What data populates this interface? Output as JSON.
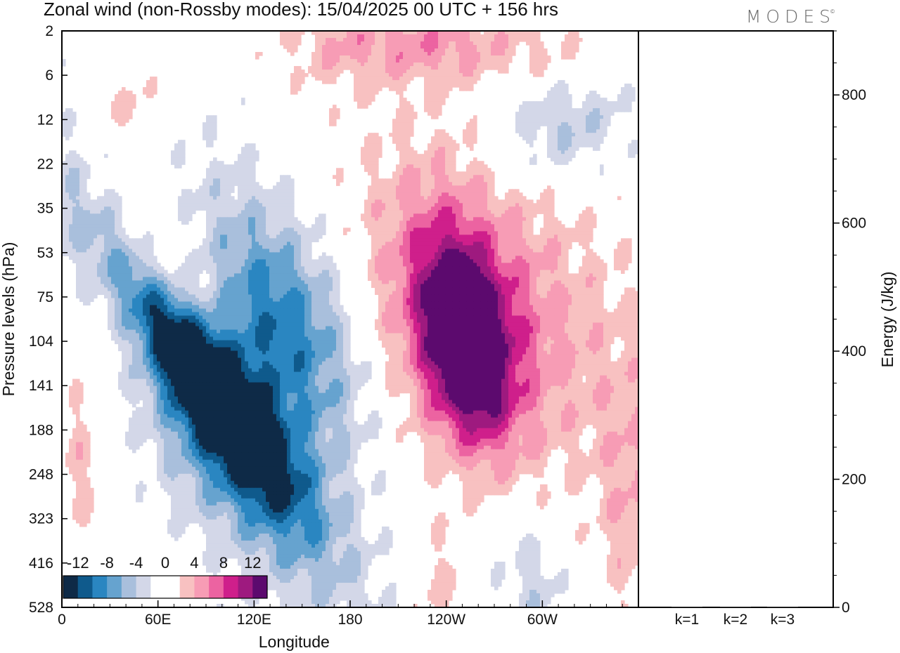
{
  "title": "Zonal wind (non-Rossby modes):  15/04/2025  00 UTC  + 156 hrs",
  "brand": "MODES",
  "chart_data": [
    {
      "type": "heatmap",
      "variable": "Zonal wind (non-Rossby modes)",
      "ylabel": "Pressure levels (hPa)",
      "xlabel": "Longitude",
      "y_ticks": [
        "2",
        "6",
        "12",
        "22",
        "35",
        "53",
        "75",
        "104",
        "141",
        "188",
        "248",
        "323",
        "416",
        "528"
      ],
      "x_ticks": [
        "0",
        "60E",
        "120E",
        "180",
        "120W",
        "60W"
      ],
      "x_range": [
        0,
        360
      ],
      "colorbar": {
        "labels": [
          "-12",
          "-8",
          "-4",
          "0",
          "4",
          "8",
          "12"
        ],
        "levels": [
          -14,
          -12,
          -10,
          -8,
          -6,
          -4,
          -2,
          0,
          2,
          4,
          6,
          8,
          10,
          12,
          14
        ],
        "colors": [
          "#0e2a47",
          "#0f5a8c",
          "#2a86c1",
          "#66a3cf",
          "#a9bfdc",
          "#d3d7e8",
          "#ffffff",
          "#ffffff",
          "#f8c1c1",
          "#f79cb5",
          "#ec63a1",
          "#cf1f8b",
          "#9e1a7f",
          "#5c0a6e"
        ]
      },
      "blobs": [
        {
          "lon": 84,
          "lev": 7.6,
          "sx": 14,
          "sy": 2.2,
          "rot": -35,
          "val": -13
        },
        {
          "lon": 80,
          "lev": 7.8,
          "sx": 24,
          "sy": 3.2,
          "rot": -35,
          "val": -9
        },
        {
          "lon": 77,
          "lev": 8.2,
          "sx": 38,
          "sy": 4.5,
          "rot": -35,
          "val": -5
        },
        {
          "lon": 128,
          "lev": 6.4,
          "sx": 30,
          "sy": 2.0,
          "rot": -30,
          "val": -8
        },
        {
          "lon": 130,
          "lev": 6.8,
          "sx": 45,
          "sy": 3.2,
          "rot": -30,
          "val": -5
        },
        {
          "lon": 62,
          "lev": 6.1,
          "sx": 32,
          "sy": 1.6,
          "rot": -30,
          "val": 8
        },
        {
          "lon": 60,
          "lev": 6.3,
          "sx": 48,
          "sy": 2.4,
          "rot": -30,
          "val": 5
        },
        {
          "lon": 252,
          "lev": 7.0,
          "sx": 16,
          "sy": 1.4,
          "rot": -10,
          "val": 12
        },
        {
          "lon": 252,
          "lev": 7.0,
          "sx": 30,
          "sy": 2.4,
          "rot": -15,
          "val": 7
        },
        {
          "lon": 228,
          "lev": 8.4,
          "sx": 80,
          "sy": 3.4,
          "rot": -18,
          "val": 3
        },
        {
          "lon": 288,
          "lev": 6.2,
          "sx": 45,
          "sy": 2.6,
          "rot": -30,
          "val": 3
        },
        {
          "lon": 275,
          "lev": 10.2,
          "sx": 35,
          "sy": 2.6,
          "rot": 0,
          "val": -3
        },
        {
          "lon": 355,
          "lev": 10.5,
          "sx": 14,
          "sy": 2.0,
          "rot": 0,
          "val": 3
        },
        {
          "lon": 312,
          "lev": 2.0,
          "sx": 30,
          "sy": 0.9,
          "rot": -20,
          "val": -5
        },
        {
          "lon": 180,
          "lev": 0.3,
          "sx": 30,
          "sy": 0.7,
          "rot": 0,
          "val": 4
        },
        {
          "lon": 237,
          "lev": 0.3,
          "sx": 25,
          "sy": 0.6,
          "rot": 0,
          "val": 4
        },
        {
          "lon": 300,
          "lev": 0.6,
          "sx": 30,
          "sy": 0.8,
          "rot": 0,
          "val": 3
        },
        {
          "lon": 235,
          "lev": 12.6,
          "sx": 14,
          "sy": 1.0,
          "rot": 0,
          "val": 3
        },
        {
          "lon": 295,
          "lev": 12.5,
          "sx": 14,
          "sy": 1.0,
          "rot": 0,
          "val": -3
        },
        {
          "lon": 45,
          "lev": 1.8,
          "sx": 16,
          "sy": 0.6,
          "rot": 0,
          "val": 3
        },
        {
          "lon": 10,
          "lev": 9.9,
          "sx": 8,
          "sy": 1.2,
          "rot": 0,
          "val": 3
        }
      ]
    },
    {
      "type": "bar",
      "ylabel": "Energy (J/kg)",
      "categories": [
        "k=1",
        "k=2",
        "k=3"
      ],
      "values": [
        1,
        1,
        0
      ],
      "ylim": [
        0,
        900
      ],
      "y_ticks": [
        0,
        200,
        400,
        600,
        800
      ]
    }
  ]
}
